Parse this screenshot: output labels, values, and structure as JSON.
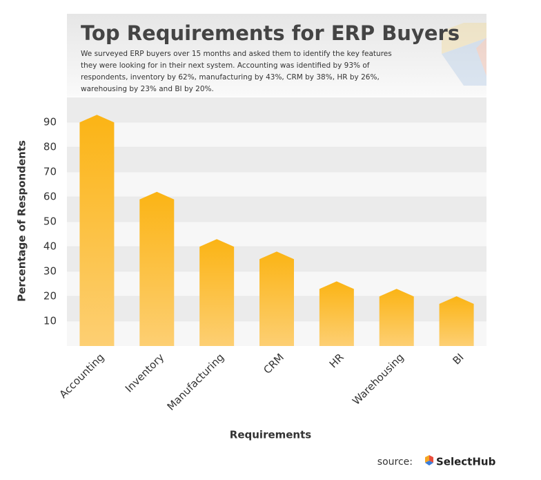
{
  "chart_data": {
    "type": "bar",
    "title": "Top Requirements for ERP Buyers",
    "subtitle": "We surveyed ERP buyers over 15 months and asked them to identify the key features they were looking for in their next system. Accounting was identified by 93% of respondents, inventory by 62%, manufacturing by 43%, CRM by 38%, HR by 26%, warehousing by 23% and BI by 20%.",
    "x_label": "Requirements",
    "y_label": "Percentage of Respondents",
    "categories": [
      "Accounting",
      "Inventory",
      "Manufacturing",
      "CRM",
      "HR",
      "Warehousing",
      "BI"
    ],
    "values": [
      93,
      62,
      43,
      38,
      26,
      23,
      20
    ],
    "color": "#fbb415",
    "ylim": [
      0,
      100
    ],
    "yticks": [
      10,
      20,
      30,
      40,
      50,
      60,
      70,
      80,
      90
    ],
    "grid": true
  },
  "footer": {
    "label": "source:",
    "brand": "SelectHub"
  }
}
